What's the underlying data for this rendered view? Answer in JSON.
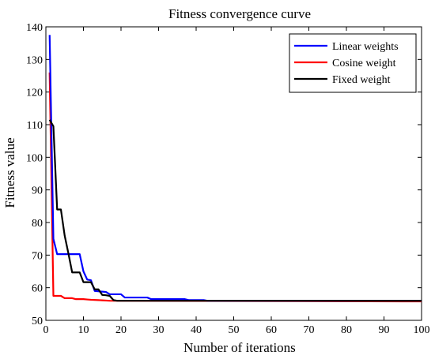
{
  "chart_data": {
    "type": "line",
    "title": "Fitness convergence curve",
    "xlabel": "Number of iterations",
    "ylabel": "Fitness value",
    "xlim": [
      0,
      100
    ],
    "ylim": [
      50,
      140
    ],
    "xticks": [
      0,
      10,
      20,
      30,
      40,
      50,
      60,
      70,
      80,
      90,
      100
    ],
    "yticks": [
      50,
      60,
      70,
      80,
      90,
      100,
      110,
      120,
      130,
      140
    ],
    "grid": false,
    "legend_position": "top-right",
    "series": [
      {
        "name": "Linear weights",
        "color": "#0000ff",
        "points": [
          [
            1,
            137.5
          ],
          [
            2,
            75
          ],
          [
            3,
            70.3
          ],
          [
            9,
            70.3
          ],
          [
            10,
            65
          ],
          [
            11,
            62.5
          ],
          [
            12,
            62.3
          ],
          [
            13,
            59
          ],
          [
            15,
            58.8
          ],
          [
            16,
            58.7
          ],
          [
            17,
            58
          ],
          [
            20,
            58
          ],
          [
            21,
            57
          ],
          [
            27,
            57
          ],
          [
            28,
            56.5
          ],
          [
            37,
            56.5
          ],
          [
            38,
            56.2
          ],
          [
            42,
            56.2
          ],
          [
            43,
            56
          ],
          [
            100,
            56
          ]
        ]
      },
      {
        "name": "Cosine weight",
        "color": "#ff0000",
        "points": [
          [
            1,
            126
          ],
          [
            2,
            57.5
          ],
          [
            4,
            57.5
          ],
          [
            5,
            56.8
          ],
          [
            7,
            56.8
          ],
          [
            8,
            56.5
          ],
          [
            10,
            56.5
          ],
          [
            11,
            56.4
          ],
          [
            12,
            56.3
          ],
          [
            14,
            56.2
          ],
          [
            17,
            56
          ],
          [
            100,
            55.8
          ]
        ]
      },
      {
        "name": "Fixed weight",
        "color": "#000000",
        "points": [
          [
            1,
            111.5
          ],
          [
            2,
            109.5
          ],
          [
            3,
            84
          ],
          [
            4,
            84
          ],
          [
            5,
            76
          ],
          [
            6,
            70.5
          ],
          [
            7,
            64.7
          ],
          [
            9,
            64.7
          ],
          [
            10,
            61.7
          ],
          [
            12,
            61.7
          ],
          [
            13,
            59.5
          ],
          [
            14,
            59.5
          ],
          [
            15,
            57.8
          ],
          [
            16,
            57.7
          ],
          [
            17,
            57.5
          ],
          [
            18,
            56.2
          ],
          [
            19,
            56
          ],
          [
            100,
            56
          ]
        ]
      }
    ]
  }
}
